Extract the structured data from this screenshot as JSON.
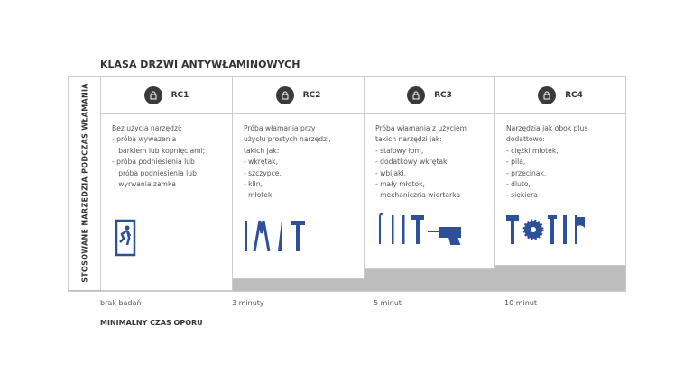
{
  "title": "KLASA DRZWI ANTYWŁAMINOWYCH",
  "side_label": "STOSOWANE NARZĘDZIA PODCZAS WŁAMANIA",
  "colors": {
    "icon": "#2e4f9a",
    "lock_badge": "#3a3a3a",
    "step_fill": "#bdbdbd"
  },
  "columns": [
    {
      "label": "RC1",
      "icon": "lock-icon",
      "text": "Bez użycia narzędzi:\n- próba wywazenia\n   barkiem lub kopnięciami;\n- próba podniesienia lub\n   próba podniesienia lub\n   wyrwania zamka",
      "tools": [
        "person-forcing-door-icon"
      ],
      "time": "brak badań"
    },
    {
      "label": "RC2",
      "icon": "lock-icon",
      "text": "Próba włamania przy\nużyclu prostych narzędzi,\ntakich jak:\n- wkrętak,\n- szczypce,\n- klin,\n- młotek",
      "tools": [
        "screwdriver-icon",
        "pliers-icon",
        "wedge-icon",
        "hammer-icon"
      ],
      "time": "3 minuty"
    },
    {
      "label": "RC3",
      "icon": "lock-icon",
      "text": "Próba włamania z użyciem\ntakich narzędzi jak:\n- stalowy łom,\n- dodatkowy wkrętak,\n- wbijaki,\n- mały młotok,\n- mechaniczria wiertarka",
      "tools": [
        "crowbar-icon",
        "screwdriver-icon",
        "punch-icon",
        "hammer-icon",
        "drill-icon"
      ],
      "time": "5 minut"
    },
    {
      "label": "RC4",
      "icon": "lock-icon",
      "text": "Narzędzia jak obok plus\ndodattowo:\n- ciężki mlotek,\n- pila,\n- przecinak,\n- dluto,\n- siekiera",
      "tools": [
        "sledgehammer-icon",
        "saw-blade-icon",
        "chisel-icon",
        "chisel-icon",
        "axe-icon"
      ],
      "time": "10 minut"
    }
  ],
  "footer": "MINIMALNY CZAS OPORU"
}
